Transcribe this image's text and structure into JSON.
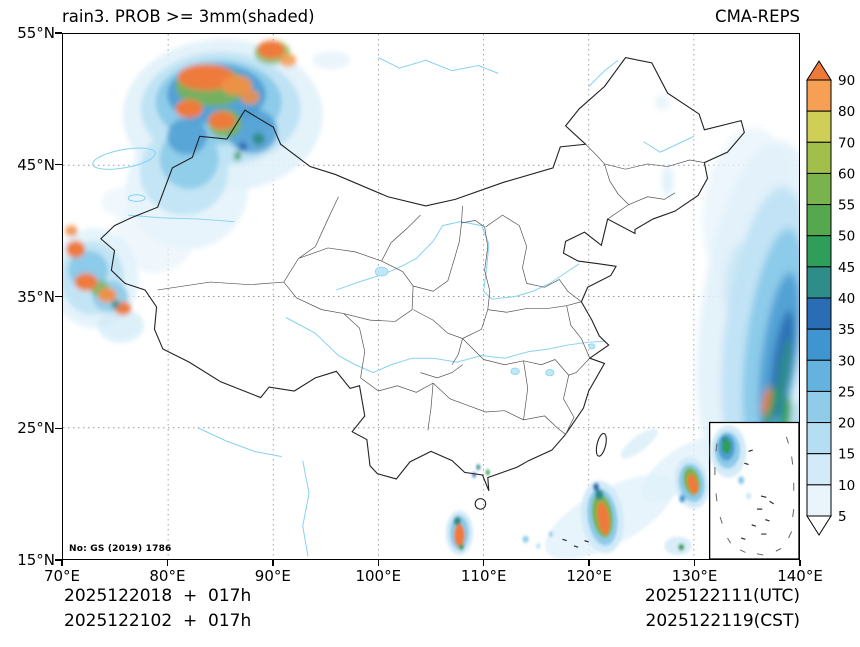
{
  "header": {
    "title": "rain3. PROB >= 3mm(shaded)",
    "model": "CMA-REPS"
  },
  "map": {
    "license": "No: GS (2019) 1786",
    "x_ticks": [
      "70°E",
      "80°E",
      "90°E",
      "100°E",
      "110°E",
      "120°E",
      "130°E",
      "140°E"
    ],
    "y_ticks_top_to_bottom": [
      "55°N",
      "45°N",
      "35°N",
      "25°N",
      "15°N"
    ]
  },
  "colorbar": {
    "labels_top_to_bottom": [
      "90",
      "80",
      "70",
      "60",
      "55",
      "50",
      "45",
      "40",
      "35",
      "30",
      "25",
      "20",
      "15",
      "10",
      "5"
    ],
    "cells_top_to_bottom": [
      "#f5a054",
      "#cfcf58",
      "#a3bf4b",
      "#7ab34c",
      "#55a84d",
      "#2f9e5a",
      "#2e8c89",
      "#2b6db4",
      "#3f95cf",
      "#64b2de",
      "#90cbe9",
      "#b6def2",
      "#d3ebf8",
      "#e9f5fb"
    ],
    "over_color": "#ee7a3a",
    "under_color": "#ffffff"
  },
  "footer": {
    "init_lines": [
      "2025122018  +  017h",
      "2025122102  +  017h"
    ],
    "valid_lines": [
      "2025122111(UTC)",
      "2025122119(CST)"
    ]
  }
}
